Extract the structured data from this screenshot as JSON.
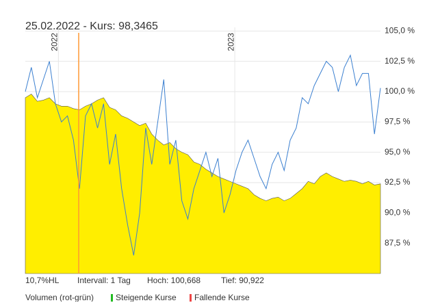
{
  "chart_data": {
    "type": "area-line",
    "title": "25.02.2022  -  Kurs: 98,3465",
    "xlim": [
      0,
      59
    ],
    "xticks": [
      {
        "value": 5.5,
        "label": "2022"
      },
      {
        "value": 34.8,
        "label": "2023"
      }
    ],
    "ylim": [
      85,
      105.3
    ],
    "yticks": [
      {
        "value": 87.5,
        "label": "87,5 %"
      },
      {
        "value": 90,
        "label": "90,0 %"
      },
      {
        "value": 92.5,
        "label": "92,5 %"
      },
      {
        "value": 95,
        "label": "95,0 %"
      },
      {
        "value": 97.5,
        "label": "97,5 %"
      },
      {
        "value": 100,
        "label": "100,0 %"
      },
      {
        "value": 102.5,
        "label": "102,5 %"
      },
      {
        "value": 105,
        "label": "105,0 %"
      }
    ],
    "grid": true,
    "series": [
      {
        "color": "#ffee00",
        "style": "area",
        "values": [
          99.5,
          99.8,
          99.2,
          99.3,
          99.5,
          99,
          98.8,
          98.8,
          98.6,
          98.5,
          98.8,
          99,
          99.3,
          99.5,
          98.7,
          98.5,
          98,
          97.8,
          97.5,
          97.2,
          97.4,
          96.5,
          96,
          95.6,
          95.8,
          95.3,
          95,
          94.8,
          94.2,
          94,
          93.6,
          93.3,
          93,
          92.8,
          92.6,
          92.4,
          92.2,
          92,
          91.5,
          91.2,
          91,
          91.2,
          91.3,
          91,
          91.2,
          91.6,
          92,
          92.6,
          92.4,
          93,
          93.3,
          93,
          92.8,
          92.6,
          92.7,
          92.6,
          92.4,
          92.6,
          92.3,
          92.4
        ]
      },
      {
        "color": "#3a7fd0",
        "style": "line",
        "values": [
          100,
          102,
          99.5,
          101,
          102.5,
          99,
          97.5,
          98,
          96,
          92,
          98,
          99,
          97,
          99,
          94,
          96.5,
          92,
          89,
          86.5,
          90,
          97,
          94,
          97.5,
          101,
          94,
          96,
          91,
          89.5,
          92,
          93.5,
          95,
          93,
          94.5,
          90,
          91.5,
          93.5,
          95,
          96,
          94.5,
          93,
          92,
          94,
          95,
          93.5,
          96,
          97,
          99.5,
          99,
          100.5,
          101.5,
          102.5,
          102,
          100,
          102,
          103,
          100.5,
          101.5,
          101.5,
          96.5,
          100.3
        ]
      }
    ],
    "footer": [
      "10,7%HL",
      "Intervall: 1 Tag",
      "Hoch: 100,668",
      "Tief: 90,922"
    ],
    "legend": {
      "title": "Volumen (rot-grün)",
      "items": [
        {
          "label": "Steigende Kurse",
          "color": "#22bb22"
        },
        {
          "label": "Fallende Kurse",
          "color": "#ee4444"
        }
      ]
    }
  }
}
